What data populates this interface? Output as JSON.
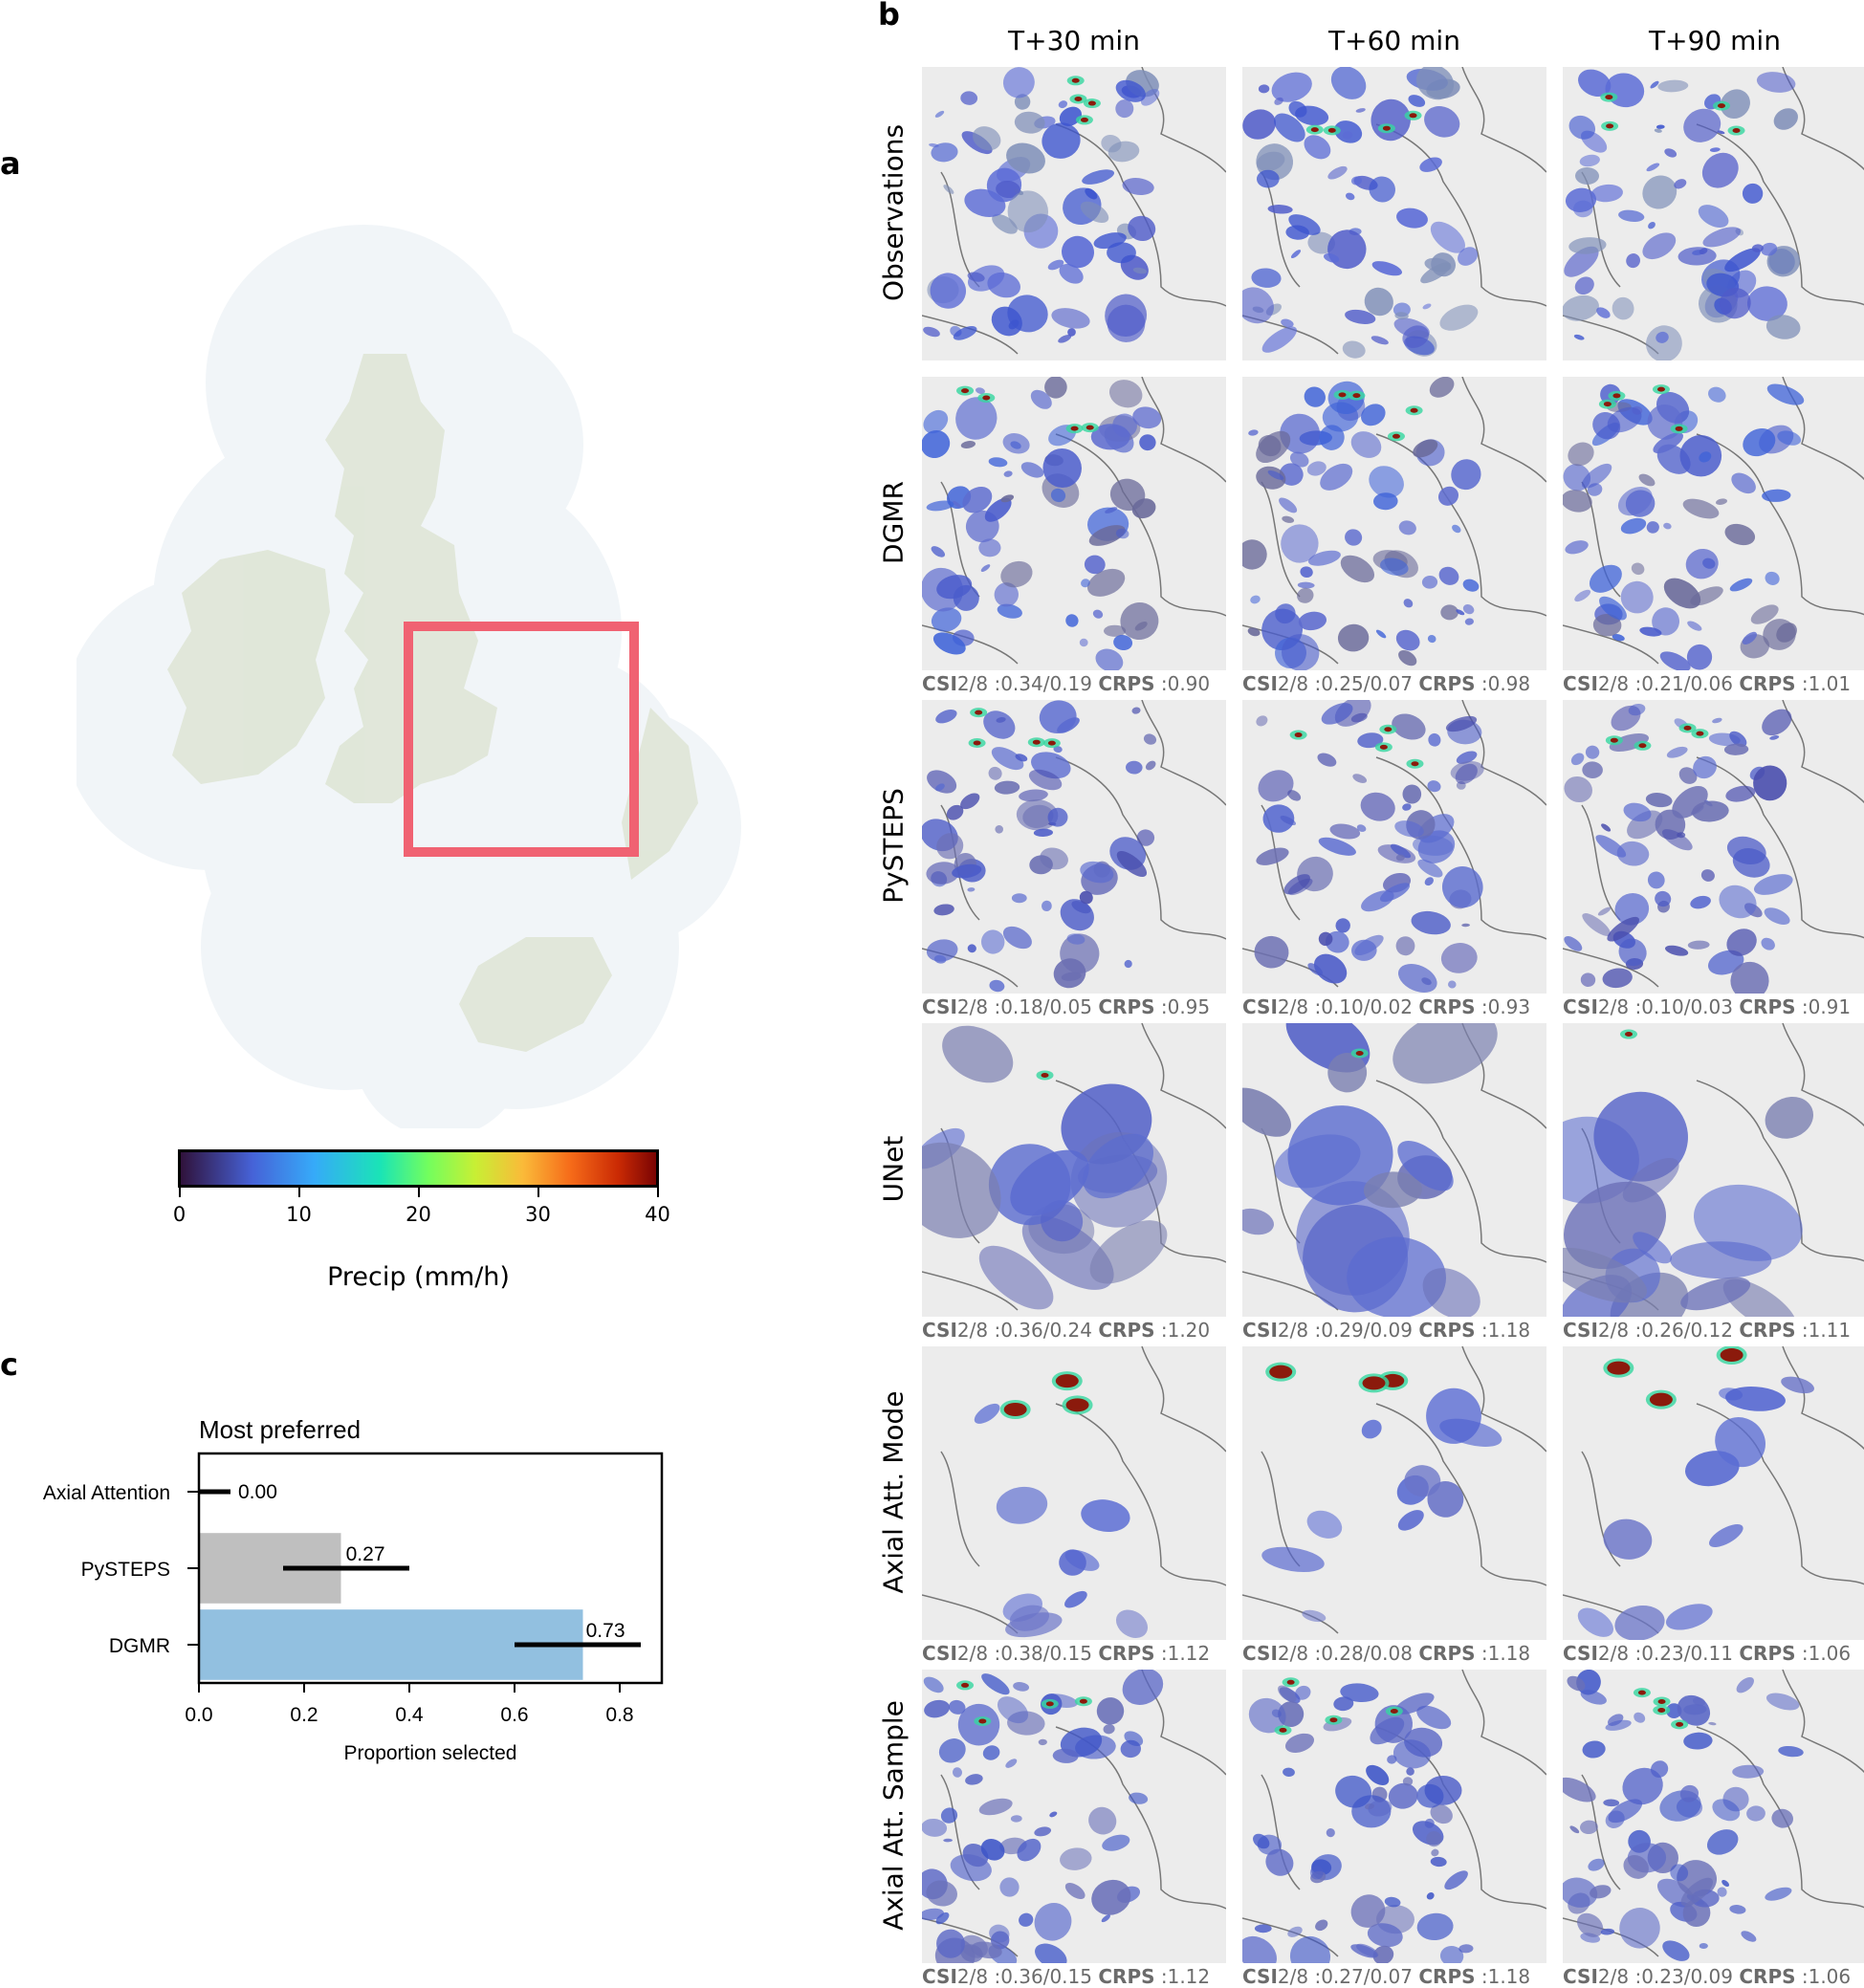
{
  "panels": {
    "a": "a",
    "b": "b",
    "c": "c"
  },
  "columns": [
    "T+30 min",
    "T+60 min",
    "T+90 min"
  ],
  "rows": [
    {
      "label": "Observations",
      "scores": null,
      "style": "obs"
    },
    {
      "label": "DGMR",
      "style": "dgmr",
      "scores": [
        {
          "csi": "CSI2/8 :0.34/0.19",
          "crps": "CRPS :0.90"
        },
        {
          "csi": "CSI2/8 :0.25/0.07",
          "crps": "CRPS :0.98"
        },
        {
          "csi": "CSI2/8 :0.21/0.06",
          "crps": "CRPS :1.01"
        }
      ]
    },
    {
      "label": "PySTEPS",
      "style": "pysteps",
      "scores": [
        {
          "csi": "CSI2/8 :0.18/0.05",
          "crps": "CRPS :0.95"
        },
        {
          "csi": "CSI2/8 :0.10/0.02",
          "crps": "CRPS :0.93"
        },
        {
          "csi": "CSI2/8 :0.10/0.03",
          "crps": "CRPS :0.91"
        }
      ]
    },
    {
      "label": "UNet",
      "style": "unet",
      "scores": [
        {
          "csi": "CSI2/8 :0.36/0.24",
          "crps": "CRPS :1.20"
        },
        {
          "csi": "CSI2/8 :0.29/0.09",
          "crps": "CRPS :1.18"
        },
        {
          "csi": "CSI2/8 :0.26/0.12",
          "crps": "CRPS :1.11"
        }
      ]
    },
    {
      "label": "Axial Att. Mode",
      "style": "mode",
      "scores": [
        {
          "csi": "CSI2/8 :0.38/0.15",
          "crps": "CRPS :1.12"
        },
        {
          "csi": "CSI2/8 :0.28/0.08",
          "crps": "CRPS :1.18"
        },
        {
          "csi": "CSI2/8 :0.23/0.11",
          "crps": "CRPS :1.06"
        }
      ]
    },
    {
      "label": "Axial Att. Sample",
      "style": "sample",
      "scores": [
        {
          "csi": "CSI2/8 :0.36/0.15",
          "crps": "CRPS :1.12"
        },
        {
          "csi": "CSI2/8 :0.27/0.07",
          "crps": "CRPS :1.18"
        },
        {
          "csi": "CSI2/8 :0.23/0.09",
          "crps": "CRPS :1.06"
        }
      ]
    }
  ],
  "colorbar": {
    "ticks": [
      "0",
      "10",
      "20",
      "30",
      "40"
    ],
    "label": "Precip (mm/h)",
    "range": [
      0,
      40
    ]
  },
  "colors": {
    "highlight_box": "#f06272",
    "bar_pysteps": "#bfbfbf",
    "bar_dgmr": "#92c0e0",
    "map_land": "#dfe6d6",
    "map_sea": "#f1f5f8"
  },
  "chart_data": {
    "type": "bar",
    "orientation": "horizontal",
    "title": "Most preferred",
    "xlabel": "Proportion selected",
    "ylabel": "",
    "categories": [
      "Axial Attention",
      "PySTEPS",
      "DGMR"
    ],
    "values": [
      0.0,
      0.27,
      0.73
    ],
    "value_labels": [
      "0.00",
      "0.27",
      "0.73"
    ],
    "error_low": [
      0.0,
      0.16,
      0.6
    ],
    "error_high": [
      0.06,
      0.4,
      0.84
    ],
    "xlim": [
      0,
      0.88
    ],
    "xticks": [
      0.0,
      0.2,
      0.4,
      0.6,
      0.8
    ],
    "xtick_labels": [
      "0.0",
      "0.2",
      "0.4",
      "0.6",
      "0.8"
    ],
    "grid": false,
    "legend": "none"
  }
}
